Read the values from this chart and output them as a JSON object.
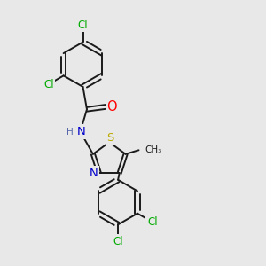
{
  "bg_color": "#e8e8e8",
  "bond_color": "#1a1a1a",
  "bond_width": 1.4,
  "atom_colors": {
    "Cl": "#00aa00",
    "O": "#ff0000",
    "N": "#0000cc",
    "S": "#bbaa00",
    "C": "#1a1a1a",
    "H": "#5566aa"
  },
  "font_size": 8.5
}
